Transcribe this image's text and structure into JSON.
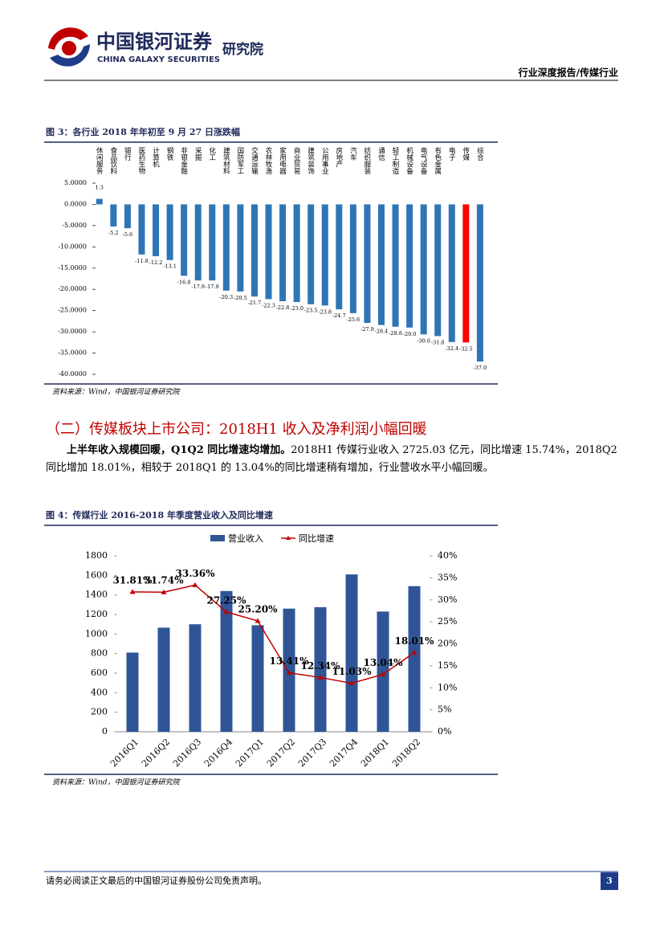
{
  "header": {
    "brand": "中国银河证券",
    "brand_en": "CHINA GALAXY SECURITIES",
    "institute": "研究院",
    "report_type": "行业深度报告/传媒行业"
  },
  "chart_data": [
    {
      "type": "bar",
      "title": "图 3：各行业 2018 年年初至 9 月 27 日涨跌幅",
      "categories": [
        "休闲服务",
        "食品饮料",
        "银行",
        "医药生物",
        "计算机",
        "钢铁",
        "非银金融",
        "采掘",
        "化工",
        "建筑材料",
        "国防军工",
        "交通运输",
        "农林牧渔",
        "家用电器",
        "商业贸易",
        "建筑装饰",
        "公用事业",
        "房地产",
        "汽车",
        "纺织服装",
        "通信",
        "轻工制造",
        "机械设备",
        "电气设备",
        "有色金属",
        "电子",
        "传媒",
        "综合"
      ],
      "values": [
        1.3,
        -5.2,
        -5.6,
        -11.8,
        -12.2,
        -13.1,
        -16.8,
        -17.9,
        -17.9,
        -20.3,
        -20.5,
        -21.7,
        -22.3,
        -22.8,
        -23.0,
        -23.5,
        -23.8,
        -24.7,
        -25.6,
        -27.9,
        -28.4,
        -28.8,
        -29.0,
        -30.6,
        -31.0,
        -32.4,
        -32.5,
        -37.0
      ],
      "value_labels": [
        "1.3",
        "-5.2",
        "-5.6",
        "-11.8",
        "-12.2",
        "-13.1",
        "-16.8",
        "-17.9",
        "-17.9",
        "-20.3",
        "-20.5",
        "-21.7",
        "-22.3",
        "-22.8",
        "-23.0",
        "-23.5",
        "-23.8",
        "-24.7",
        "-25.6",
        "-27.9",
        "-28.4",
        "-28.8",
        "-29.0",
        "-30.6",
        "-31.0",
        "-32.4",
        "-32.5",
        "-37.0"
      ],
      "color": "#2e75b6",
      "highlight_category": "传媒",
      "highlight_color": "#ff0000",
      "ylim": [
        -40,
        5
      ],
      "yticks": [
        {
          "value": 5,
          "label": "5.0000"
        },
        {
          "value": 0,
          "label": "0.0000"
        },
        {
          "value": -5,
          "label": "-5.0000"
        },
        {
          "value": -10,
          "label": "-10.0000"
        },
        {
          "value": -15,
          "label": "-15.0000"
        },
        {
          "value": -20,
          "label": "-20.0000"
        },
        {
          "value": -25,
          "label": "-25.0000"
        },
        {
          "value": -30,
          "label": "-30.0000"
        },
        {
          "value": -35,
          "label": "-35.0000"
        },
        {
          "value": -40,
          "label": "-40.0000"
        }
      ],
      "source": "资料来源：Wind，中国银河证券研究院"
    },
    {
      "type": "combo",
      "title": "图 4：传媒行业 2016-2018 年季度营业收入及同比增速",
      "categories": [
        "2016Q1",
        "2016Q2",
        "2016Q3",
        "2016Q4",
        "2017Q1",
        "2017Q2",
        "2017Q3",
        "2017Q4",
        "2018Q1",
        "2018Q2"
      ],
      "series": [
        {
          "name": "营业收入",
          "kind": "bar",
          "color": "#2f5597",
          "values": [
            810,
            1065,
            1100,
            1440,
            1090,
            1260,
            1275,
            1610,
            1230,
            1490
          ]
        },
        {
          "name": "同比增速",
          "kind": "line",
          "axis": "y2",
          "color": "#c00000",
          "values": [
            31.81,
            31.74,
            33.36,
            27.25,
            25.2,
            13.41,
            12.34,
            11.03,
            13.04,
            18.01
          ],
          "value_labels": [
            "31.81%",
            "31.74%",
            "33.36%",
            "27.25%",
            "25.20%",
            "13.41%",
            "12.34%",
            "11.03%",
            "13.04%",
            "18.01%"
          ]
        }
      ],
      "ylim": [
        0,
        1800
      ],
      "yticks": [
        0,
        200,
        400,
        600,
        800,
        1000,
        1200,
        1400,
        1600,
        1800
      ],
      "y2lim": [
        0,
        40
      ],
      "y2ticks": [
        {
          "value": 0,
          "label": "0%"
        },
        {
          "value": 5,
          "label": "5%"
        },
        {
          "value": 10,
          "label": "10%"
        },
        {
          "value": 15,
          "label": "15%"
        },
        {
          "value": 20,
          "label": "20%"
        },
        {
          "value": 25,
          "label": "25%"
        },
        {
          "value": 30,
          "label": "30%"
        },
        {
          "value": 35,
          "label": "35%"
        },
        {
          "value": 40,
          "label": "40%"
        }
      ],
      "source": "资料来源：Wind，中国银河证券研究院"
    }
  ],
  "section_title": "（二）传媒板块上市公司：2018H1 收入及净利润小幅回暖",
  "paragraph": {
    "lead": "上半年收入规模回暖，Q1Q2 同比增速均增加。",
    "text": "2018H1 传媒行业收入 2725.03 亿元，同比增速 15.74%，2018Q2 同比增加 18.01%，相较于 2018Q1 的 13.04%的同比增速稍有增加，行业营收水平小幅回暖。"
  },
  "footer": {
    "disclaimer": "请务必阅读正文最后的中国银河证券股份公司免责声明。",
    "page": "3"
  }
}
